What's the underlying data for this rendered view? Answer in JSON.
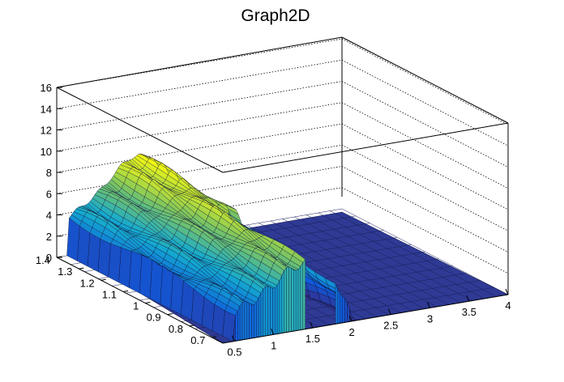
{
  "chart_data": {
    "type": "surface",
    "title": "Graph2D",
    "xlabel": "",
    "ylabel": "",
    "zlabel": "",
    "xlim": [
      0.35,
      4.0
    ],
    "ylim": [
      0.65,
      1.4
    ],
    "zlim": [
      0,
      16
    ],
    "x_ticks": [
      "0.5",
      "1",
      "1.5",
      "2",
      "2.5",
      "3",
      "3.5",
      "4"
    ],
    "y_ticks": [
      "0.7",
      "0.8",
      "0.9",
      "1",
      "1.1",
      "1.2",
      "1.3",
      "1.4"
    ],
    "z_ticks": [
      "0",
      "2",
      "4",
      "6",
      "8",
      "10",
      "12",
      "14",
      "16"
    ],
    "grid": true,
    "palette": "kBird",
    "colors": {
      "low": "#352a87",
      "mid_low": "#0f5cdd",
      "mid": "#14aad0",
      "mid_high": "#80c65d",
      "high": "#f9fb0e"
    },
    "profile_description_x": [
      0.5,
      0.6,
      0.7,
      0.8,
      0.9,
      1.0,
      1.1,
      1.2,
      1.3,
      1.4,
      1.5,
      1.6,
      1.7,
      1.8,
      1.9,
      2.0
    ],
    "profile_z_at_high_y": [
      3.6,
      4.1,
      4.5,
      5.0,
      5.6,
      6.3,
      7.0,
      7.8,
      8.2,
      8.3,
      8.0,
      7.2,
      6.0,
      5.2,
      3.4,
      0.0
    ]
  }
}
